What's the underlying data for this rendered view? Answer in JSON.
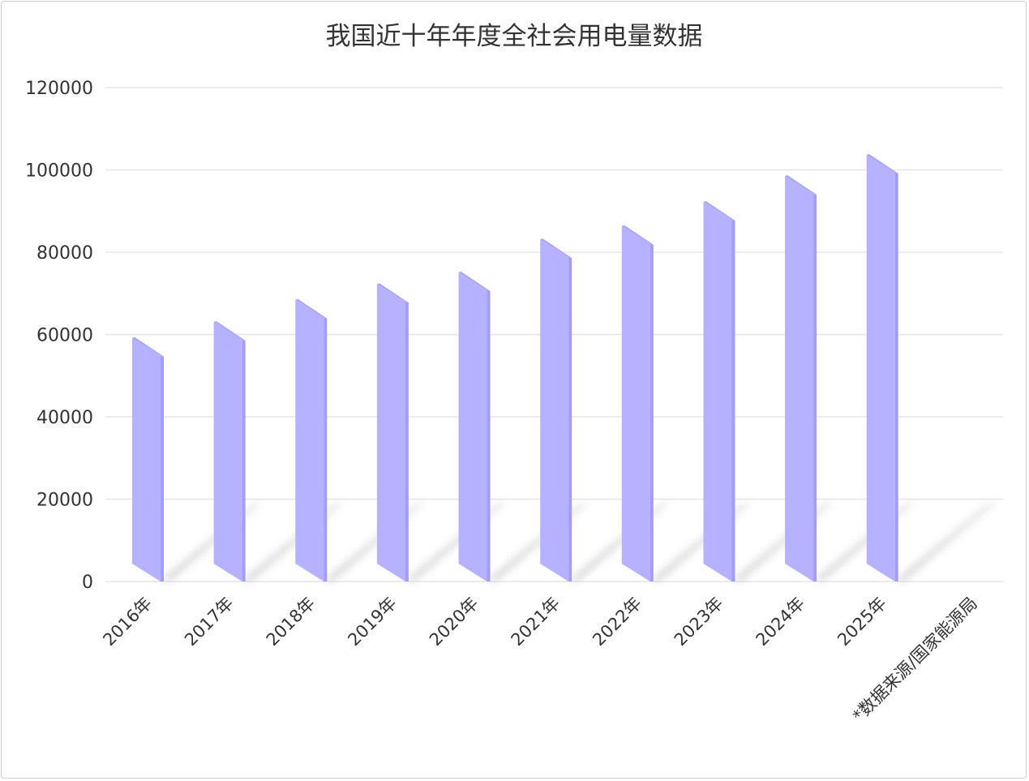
{
  "chart_data": {
    "type": "bar",
    "style": "3d-skewed-bars-with-shadow",
    "title": "我国近十年年度全社会用电量数据",
    "categories": [
      "2016年",
      "2017年",
      "2018年",
      "2019年",
      "2020年",
      "2021年",
      "2022年",
      "2023年",
      "2024年",
      "2025年"
    ],
    "values": [
      59198,
      63077,
      68449,
      72255,
      75110,
      83128,
      86372,
      92241,
      98521,
      103682
    ],
    "ylim": [
      0,
      120000
    ],
    "yticks": [
      "0",
      "20000",
      "40000",
      "60000",
      "80000",
      "100000",
      "120000"
    ],
    "grid": true,
    "annotation": "*数据来源/国家能源局",
    "colors": {
      "bar_front": "#b7b2ff",
      "bar_side": "#a39cff",
      "bar_top": "#a9a3fb",
      "grid": "#e6e6e6",
      "shadow": "#bdbdbd"
    }
  }
}
